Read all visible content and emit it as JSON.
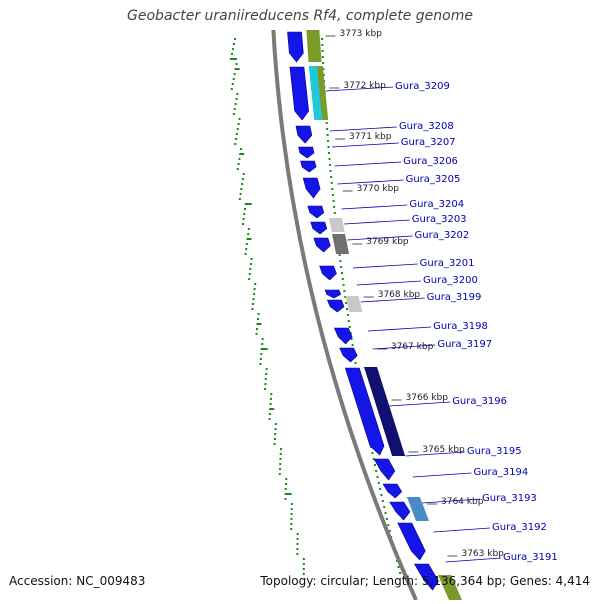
{
  "title": "Geobacter uraniireducens Rf4, complete genome",
  "accession_text": "Accession: NC_009483",
  "summary_text": "Topology: circular; Length: 5,136,364 bp; Genes: 4,414",
  "colors": {
    "background": "#ffffff",
    "backbone": "#7a7a7a",
    "forward_genes": "#1515e8",
    "gene_labels": "#0000b0",
    "gc_track": "#1a8a1a",
    "kbp_labels": "#222222"
  },
  "kbp_ticks": [
    {
      "label": "3773 kbp"
    },
    {
      "label": "3772 kbp"
    },
    {
      "label": "3771 kbp"
    },
    {
      "label": "3770 kbp"
    },
    {
      "label": "3769 kbp"
    },
    {
      "label": "3768 kbp"
    },
    {
      "label": "3767 kbp"
    },
    {
      "label": "3766 kbp"
    },
    {
      "label": "3765 kbp"
    },
    {
      "label": "3764 kbp"
    },
    {
      "label": "3763 kbp"
    }
  ],
  "gene_labels": [
    "Gura_3209",
    "Gura_3208",
    "Gura_3207",
    "Gura_3206",
    "Gura_3205",
    "Gura_3204",
    "Gura_3203",
    "Gura_3202",
    "Gura_3201",
    "Gura_3200",
    "Gura_3199",
    "Gura_3198",
    "Gura_3197",
    "Gura_3196",
    "Gura_3195",
    "Gura_3194",
    "Gura_3193",
    "Gura_3192",
    "Gura_3191"
  ],
  "track_colors": {
    "olive": "#7a9a2a",
    "cyan": "#20c8d8",
    "gray_light": "#c8c8c8",
    "gray_dark": "#707070",
    "navy": "#101070",
    "steelblue": "#4a8ac8"
  }
}
